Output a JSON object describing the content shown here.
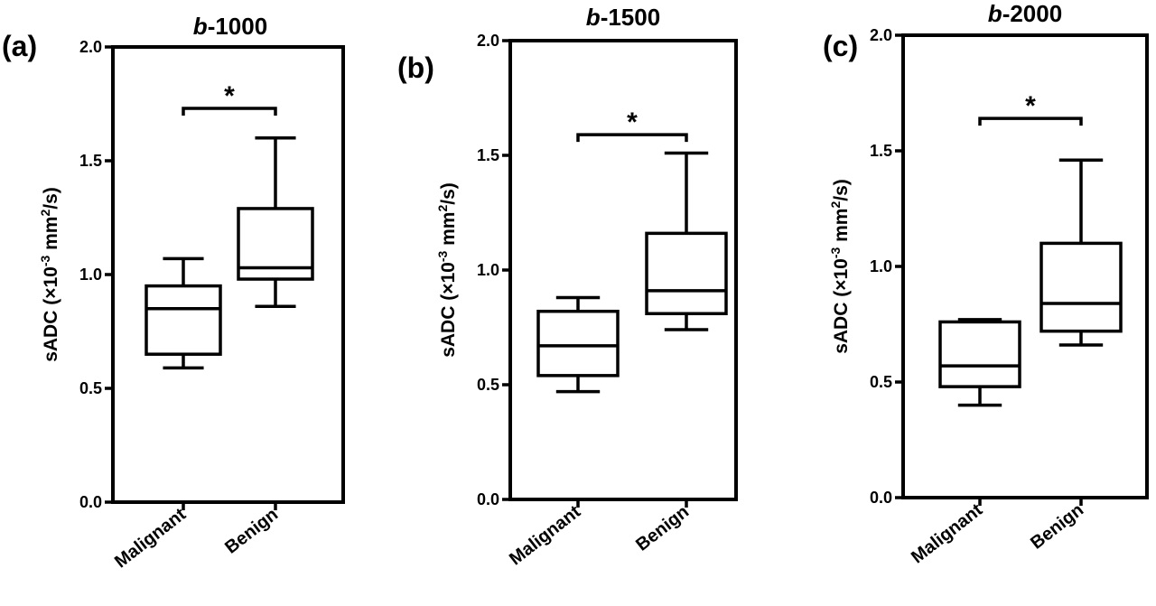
{
  "chart_data": [
    {
      "type": "box",
      "panel_label": "(a)",
      "title_prefix": "b",
      "title_suffix": "-1000",
      "ylabel_parts": [
        "sADC (×10",
        "-3",
        " mm",
        "2",
        "/s)"
      ],
      "ylim": [
        0.0,
        2.0
      ],
      "yticks": [
        "0.0",
        "0.5",
        "1.0",
        "1.5",
        "2.0"
      ],
      "categories": [
        "Malignant",
        "Benign"
      ],
      "boxes": [
        {
          "category": "Malignant",
          "min": 0.59,
          "q1": 0.65,
          "median": 0.85,
          "q3": 0.95,
          "max": 1.07
        },
        {
          "category": "Benign",
          "min": 0.86,
          "q1": 0.98,
          "median": 1.03,
          "q3": 1.29,
          "max": 1.6
        }
      ],
      "significance": {
        "marker": "*",
        "y": 1.73
      }
    },
    {
      "type": "box",
      "panel_label": "(b)",
      "title_prefix": "b",
      "title_suffix": "-1500",
      "ylabel_parts": [
        "sADC (×10",
        "-3",
        " mm",
        "2",
        "/s)"
      ],
      "ylim": [
        0.0,
        2.0
      ],
      "yticks": [
        "0.0",
        "0.5",
        "1.0",
        "1.5",
        "2.0"
      ],
      "categories": [
        "Malignant",
        "Benign"
      ],
      "boxes": [
        {
          "category": "Malignant",
          "min": 0.47,
          "q1": 0.54,
          "median": 0.67,
          "q3": 0.82,
          "max": 0.88
        },
        {
          "category": "Benign",
          "min": 0.74,
          "q1": 0.81,
          "median": 0.91,
          "q3": 1.16,
          "max": 1.51
        }
      ],
      "significance": {
        "marker": "*",
        "y": 1.59
      }
    },
    {
      "type": "box",
      "panel_label": "(c)",
      "title_prefix": "b",
      "title_suffix": "-2000",
      "ylabel_parts": [
        "sADC (×10",
        "-3",
        " mm",
        "2",
        "/s)"
      ],
      "ylim": [
        0.0,
        2.0
      ],
      "yticks": [
        "0.0",
        "0.5",
        "1.0",
        "1.5",
        "2.0"
      ],
      "categories": [
        "Malignant",
        "Benign"
      ],
      "boxes": [
        {
          "category": "Malignant",
          "min": 0.4,
          "q1": 0.48,
          "median": 0.57,
          "q3": 0.76,
          "max": 0.77
        },
        {
          "category": "Benign",
          "min": 0.66,
          "q1": 0.72,
          "median": 0.84,
          "q3": 1.1,
          "max": 1.46
        }
      ],
      "significance": {
        "marker": "*",
        "y": 1.64
      }
    }
  ]
}
